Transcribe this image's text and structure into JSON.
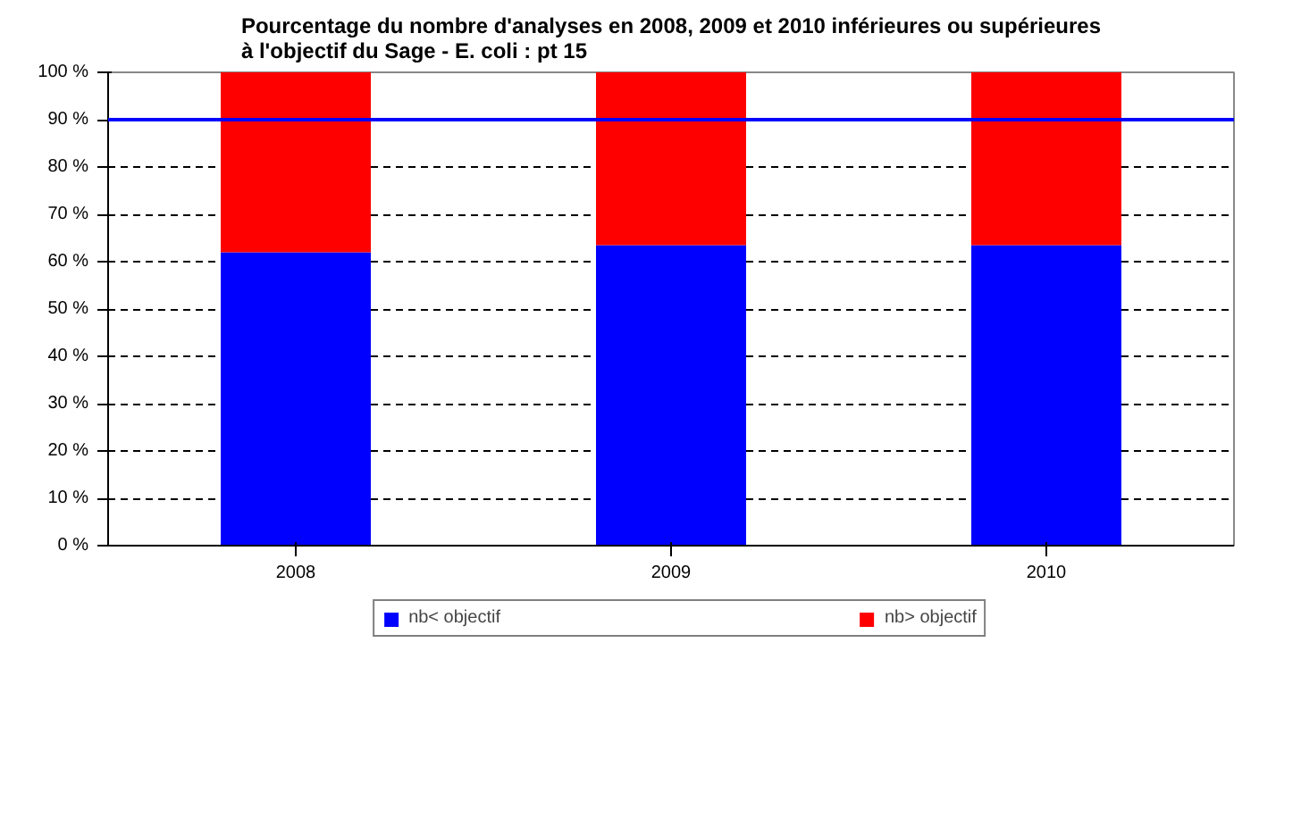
{
  "chart_data": {
    "type": "bar",
    "stacked": true,
    "title": "Pourcentage du nombre d'analyses en 2008, 2009 et 2010 inférieures ou supérieures à l'objectif du Sage - E. coli : pt 15",
    "categories": [
      "2008",
      "2009",
      "2010"
    ],
    "series": [
      {
        "name": "nb< objectif",
        "color": "#0000ff",
        "values": [
          62,
          63.5,
          63.5
        ]
      },
      {
        "name": "nb> objectif",
        "color": "#ff0000",
        "values": [
          38,
          36.5,
          36.5
        ]
      }
    ],
    "ylim": [
      0,
      100
    ],
    "yticks": [
      {
        "value": 0,
        "label": "0 %"
      },
      {
        "value": 10,
        "label": "10 %"
      },
      {
        "value": 20,
        "label": "20 %"
      },
      {
        "value": 30,
        "label": "30 %"
      },
      {
        "value": 40,
        "label": "40 %"
      },
      {
        "value": 50,
        "label": "50 %"
      },
      {
        "value": 60,
        "label": "60 %"
      },
      {
        "value": 70,
        "label": "70 %"
      },
      {
        "value": 80,
        "label": "80 %"
      },
      {
        "value": 90,
        "label": "90 %"
      },
      {
        "value": 100,
        "label": "100 %"
      }
    ],
    "ref_lines": [
      {
        "axis": "y",
        "value": 90,
        "color": "#0000ff"
      }
    ],
    "grid": "y",
    "legend": "bottom"
  }
}
